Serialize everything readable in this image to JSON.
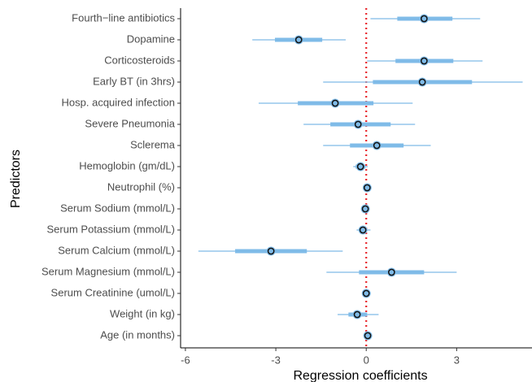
{
  "chart_data": {
    "type": "coefficient",
    "x_label": "Regression coefficients",
    "y_label": "Predictors",
    "categories": [
      "Fourth−line antibiotics",
      "Dopamine",
      "Corticosteroids",
      "Early BT (in 3hrs)",
      "Hosp. acquired infection",
      "Severe Pneumonia",
      "Sclerema",
      "Hemoglobin (gm/dL)",
      "Neutrophil (%)",
      "Serum Sodium (mmol/L)",
      "Serum Potassium (mmol/L)",
      "Serum Calcium (mmol/L)",
      "Serum Magnesium (mmol/L)",
      "Serum Creatinine (umol/L)",
      "Weight (in kg)",
      "Age (in months)"
    ],
    "values": [
      1.92,
      -2.24,
      1.92,
      1.86,
      -1.03,
      -0.27,
      0.35,
      -0.19,
      0.03,
      -0.03,
      -0.11,
      -3.16,
      0.84,
      0.0,
      -0.3,
      0.05
    ],
    "inner_low": [
      1.03,
      -3.03,
      0.97,
      0.22,
      -2.27,
      -1.19,
      -0.54,
      -0.35,
      -0.05,
      -0.08,
      -0.22,
      -4.35,
      -0.24,
      -0.05,
      -0.59,
      0.0
    ],
    "inner_high": [
      2.86,
      -1.46,
      2.89,
      3.51,
      0.24,
      0.81,
      1.24,
      -0.03,
      0.11,
      0.05,
      0.0,
      -1.97,
      1.92,
      0.05,
      0.03,
      0.11
    ],
    "outer_low": [
      0.14,
      -3.78,
      0.03,
      -1.43,
      -3.57,
      -2.08,
      -1.43,
      -0.43,
      -0.08,
      -0.11,
      -0.32,
      -5.57,
      -1.32,
      -0.11,
      -0.95,
      -0.03
    ],
    "outer_high": [
      3.78,
      -0.68,
      3.86,
      5.19,
      1.54,
      1.62,
      2.14,
      0.05,
      0.14,
      0.08,
      0.14,
      -0.78,
      3.0,
      0.11,
      0.41,
      0.14
    ],
    "color": "#7fbbe8",
    "reference_line": 0,
    "reference_color": "#e8262b",
    "xlim": [
      -6.16,
      5.5
    ],
    "xticks": [
      -6,
      -3,
      0,
      3
    ]
  }
}
